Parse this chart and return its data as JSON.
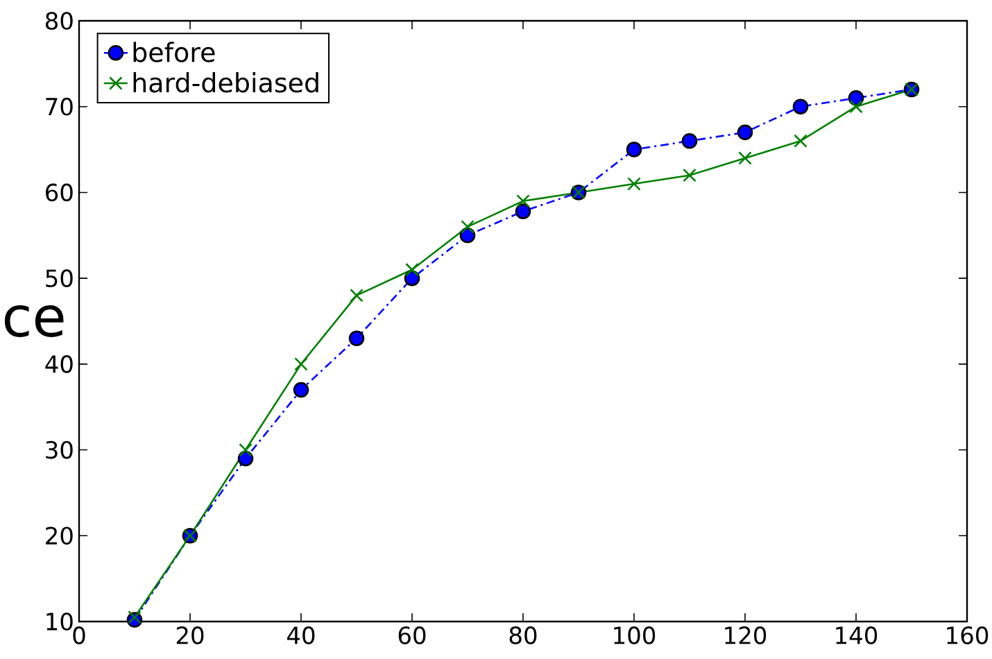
{
  "chart_data": {
    "type": "line",
    "x": [
      10,
      20,
      30,
      40,
      50,
      60,
      70,
      80,
      90,
      100,
      110,
      120,
      130,
      140,
      150
    ],
    "series": [
      {
        "name": "before",
        "color": "#0000ff",
        "marker": "circle",
        "line_style": "dashdot",
        "values": [
          10.2,
          20,
          29,
          37,
          43,
          50,
          55,
          57.8,
          60,
          65,
          66,
          67,
          70,
          71,
          72
        ]
      },
      {
        "name": "hard-debiased",
        "color": "#008000",
        "marker": "cross",
        "line_style": "solid",
        "values": [
          10.5,
          20,
          30,
          40,
          48,
          51,
          56,
          59,
          60,
          61,
          62,
          64,
          66,
          70,
          72
        ]
      }
    ],
    "xlim": [
      0,
      160
    ],
    "xticks": [
      0,
      20,
      40,
      60,
      80,
      100,
      120,
      140,
      160
    ],
    "ylim": [
      10,
      80
    ],
    "yticks": [
      10,
      20,
      30,
      40,
      50,
      60,
      70,
      80
    ],
    "grid": false,
    "legend": "top left",
    "annotations": [
      "ce"
    ]
  }
}
